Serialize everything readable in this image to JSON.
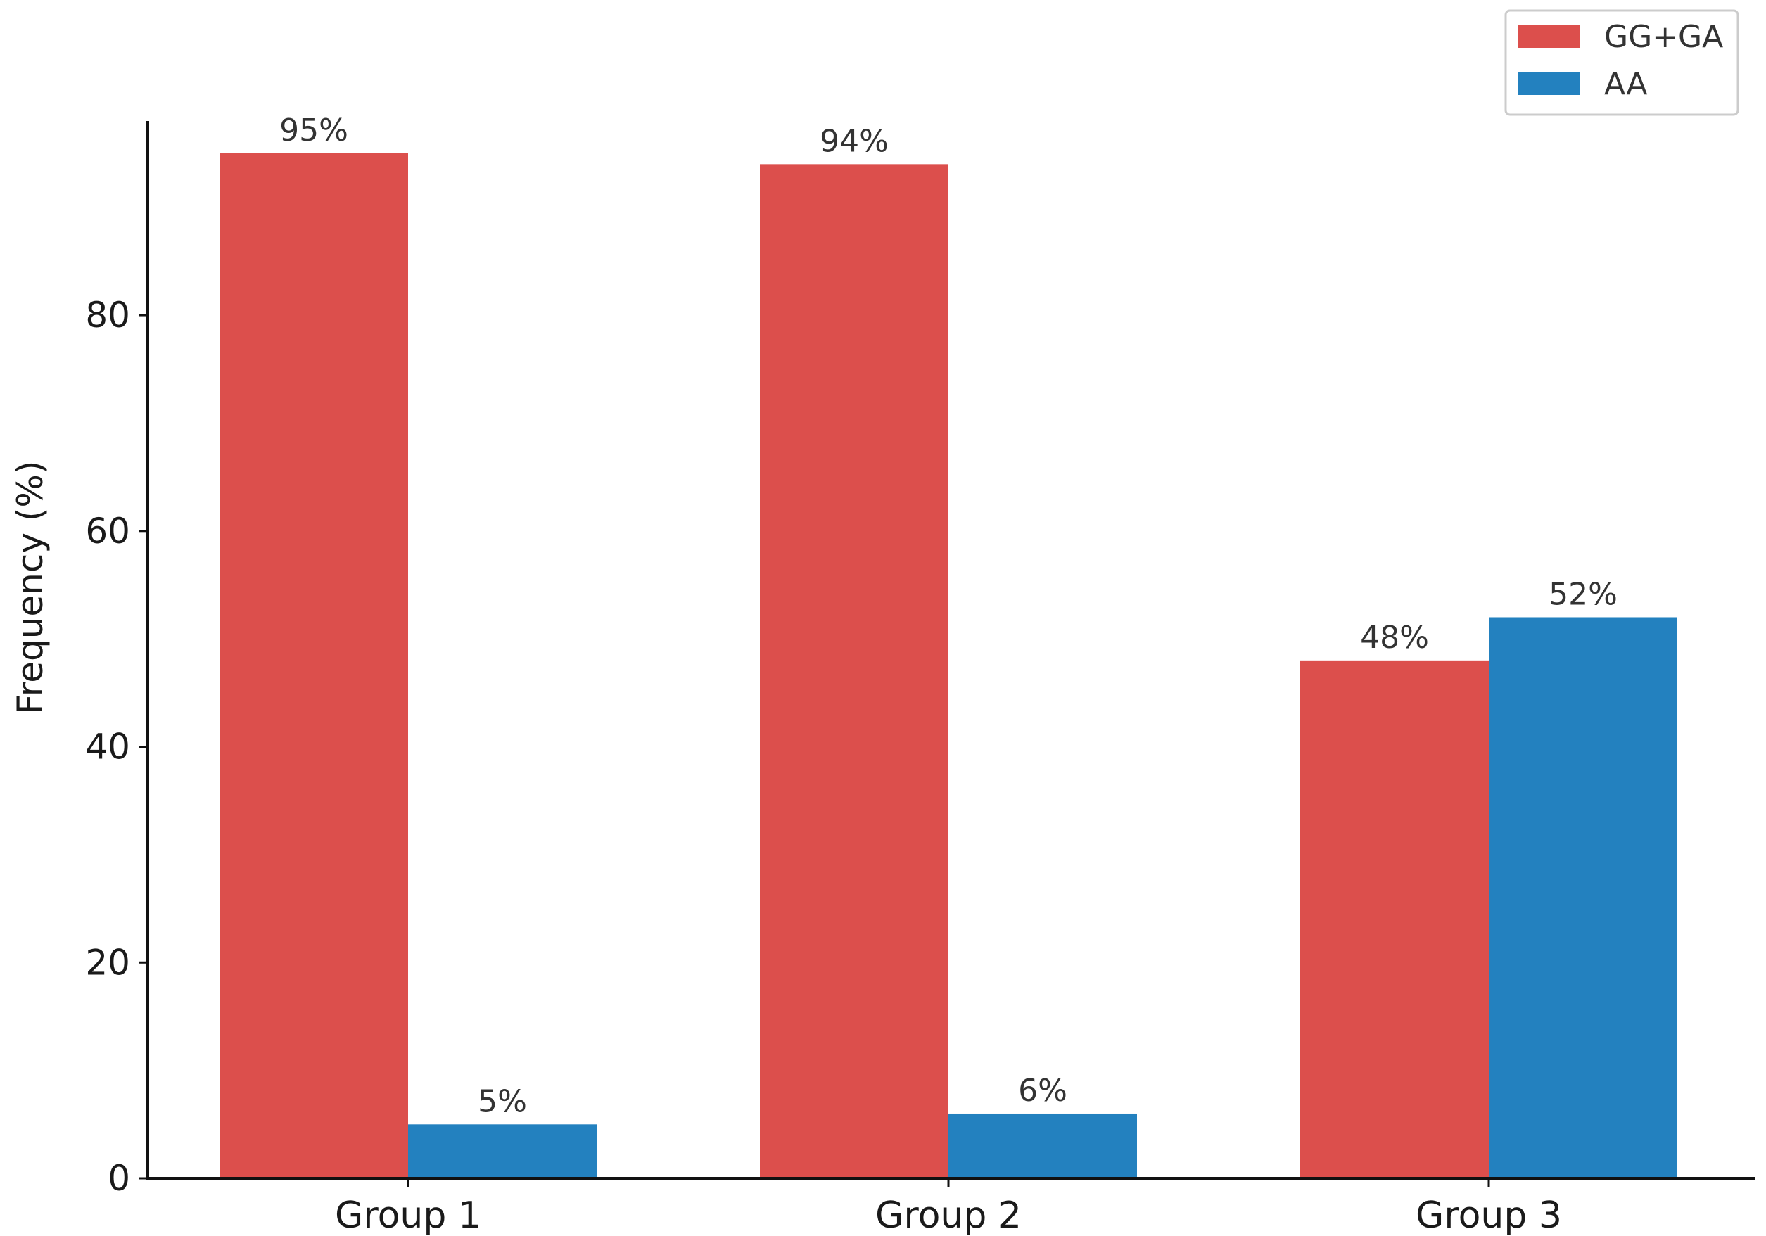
{
  "chart_data": {
    "type": "bar",
    "title": "",
    "xlabel": "",
    "ylabel": "Frequency (%)",
    "categories": [
      "Group 1",
      "Group 2",
      "Group 3"
    ],
    "series": [
      {
        "name": "GG+GA",
        "color": "#dc4f4c",
        "values": [
          95,
          94,
          48
        ],
        "labels": [
          "95%",
          "94%",
          "48%"
        ]
      },
      {
        "name": "AA",
        "color": "#2381bf",
        "values": [
          5,
          6,
          52
        ],
        "labels": [
          "5%",
          "6%",
          "52%"
        ]
      }
    ],
    "yticks": [
      0,
      20,
      40,
      60,
      80
    ],
    "ylim": [
      0,
      98
    ],
    "grid": false,
    "legend_position": "top-right"
  }
}
